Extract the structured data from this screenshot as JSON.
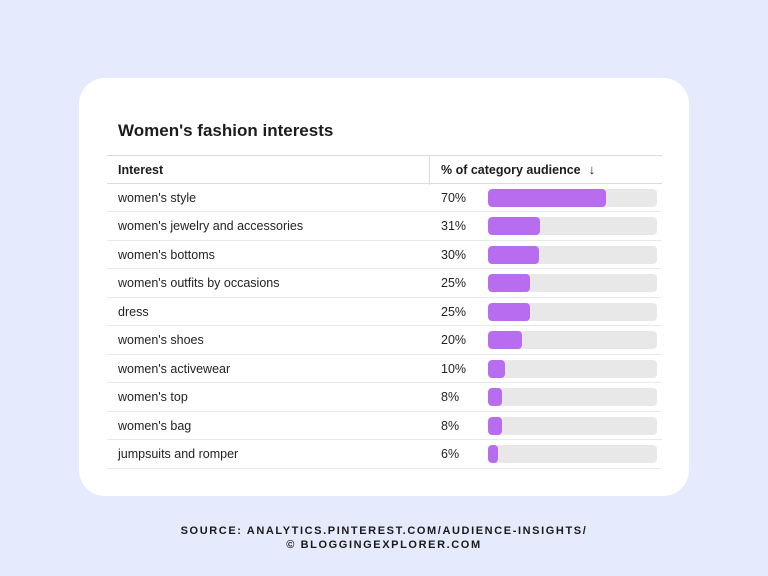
{
  "card": {
    "title": "Women's fashion interests"
  },
  "table": {
    "col_interest": "Interest",
    "col_pct": "% of category audience",
    "sort_icon": "arrow-down-icon"
  },
  "chart_data": {
    "type": "bar",
    "title": "Women's fashion interests",
    "categories": [
      "women's style",
      "women's jewelry and accessories",
      "women's bottoms",
      "women's outfits by occasions",
      "dress",
      "women's shoes",
      "women's activewear",
      "women's top",
      "women's bag",
      "jumpsuits and romper"
    ],
    "values": [
      70,
      31,
      30,
      25,
      25,
      20,
      10,
      8,
      8,
      6
    ],
    "labels": [
      "70%",
      "31%",
      "30%",
      "25%",
      "25%",
      "20%",
      "10%",
      "8%",
      "8%",
      "6%"
    ],
    "xlim": [
      0,
      100
    ],
    "bar_color": "#b86df0",
    "track_color": "#e8e8e8"
  },
  "footer": {
    "source_line1": "SOURCE: ANALYTICS.PINTEREST.COM/AUDIENCE-INSIGHTS/",
    "source_line2": "© BLOGGINGEXPLORER.COM"
  }
}
